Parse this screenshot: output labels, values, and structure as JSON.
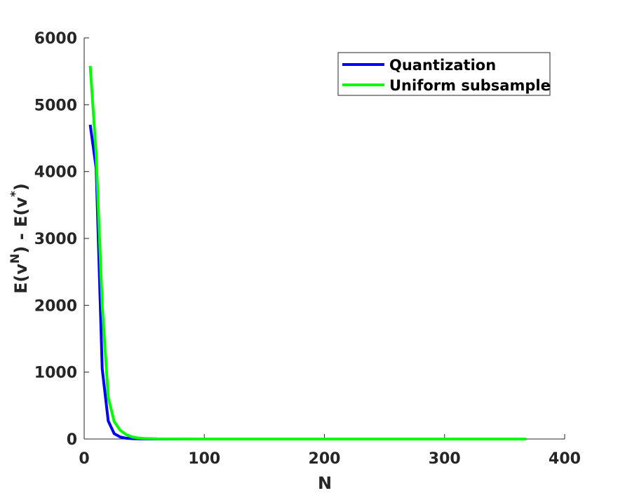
{
  "chart_data": {
    "type": "line",
    "title": "",
    "xlabel": "N",
    "ylabel": {
      "base1": "E(v",
      "sup1": "N",
      "mid": ") - E(v",
      "sup2": "*",
      "end": ")"
    },
    "xlim": [
      0,
      400
    ],
    "ylim": [
      0,
      6000
    ],
    "xticks": [
      0,
      100,
      200,
      300,
      400
    ],
    "yticks": [
      0,
      1000,
      2000,
      3000,
      4000,
      5000,
      6000
    ],
    "grid": false,
    "legend_position": "top-right",
    "series": [
      {
        "name": "Quantization",
        "color": "#0000ff",
        "x": [
          5,
          10,
          15,
          20,
          25,
          30,
          35,
          40,
          45,
          50,
          60,
          80,
          100,
          150,
          200,
          250,
          300,
          368
        ],
        "y": [
          4700,
          4050,
          1050,
          270,
          80,
          30,
          12,
          5,
          2,
          1,
          0,
          0,
          0,
          0,
          0,
          0,
          0,
          0
        ]
      },
      {
        "name": "Uniform subsample",
        "color": "#00ff00",
        "x": [
          5,
          10,
          15,
          20,
          25,
          30,
          35,
          40,
          45,
          50,
          60,
          80,
          100,
          150,
          200,
          250,
          300,
          368
        ],
        "y": [
          5580,
          4250,
          2000,
          620,
          260,
          130,
          65,
          30,
          15,
          8,
          3,
          1,
          0,
          0,
          0,
          0,
          0,
          0
        ]
      }
    ]
  }
}
